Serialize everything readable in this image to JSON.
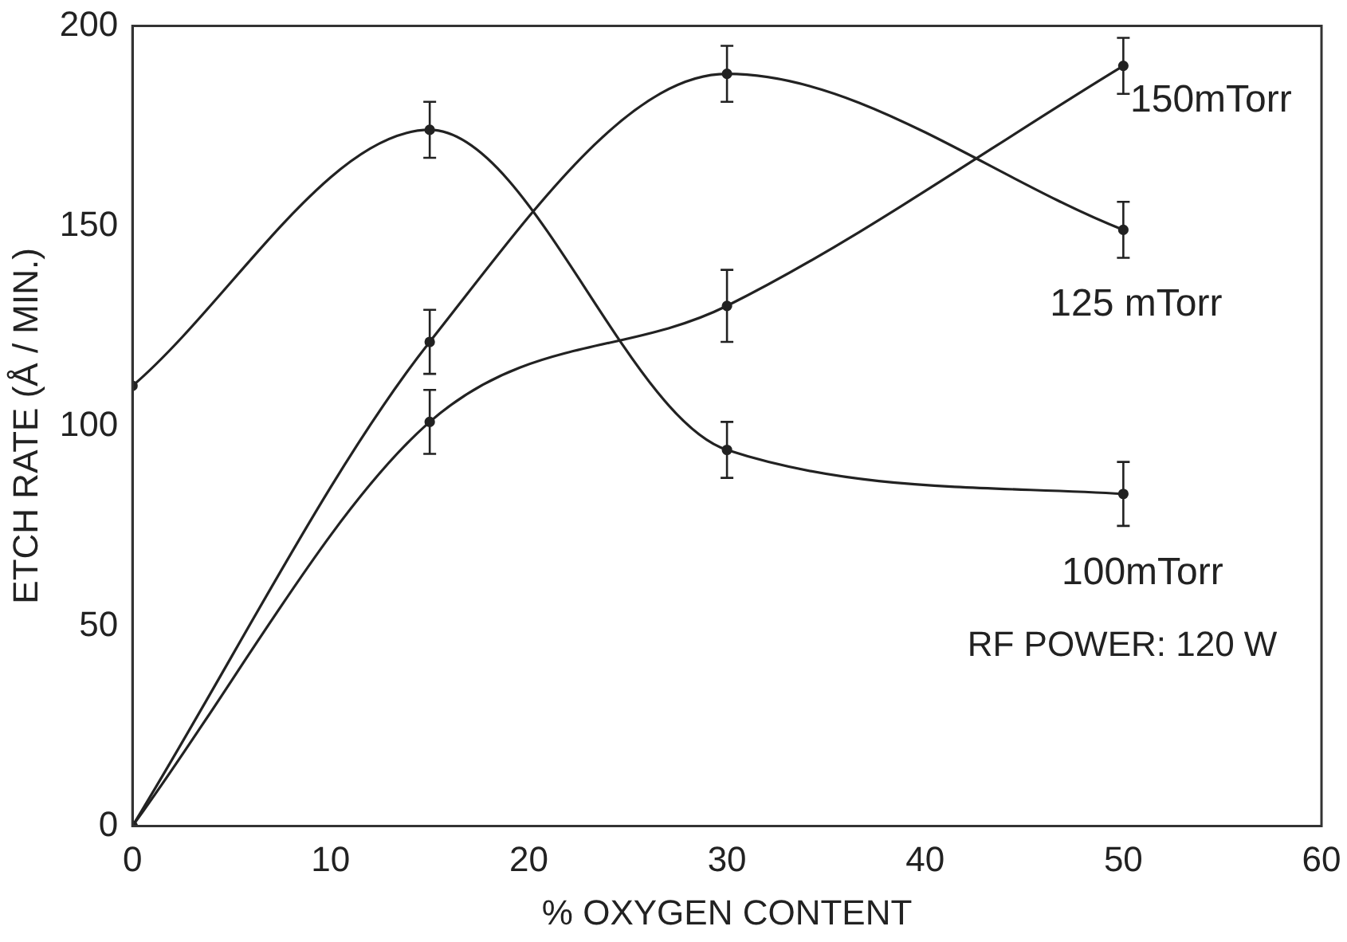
{
  "chart_data": {
    "type": "line",
    "xlabel": "% OXYGEN CONTENT",
    "ylabel": "ETCH RATE (Å / MIN.)",
    "xlim": [
      0,
      60
    ],
    "xticks": [
      0,
      10,
      20,
      30,
      40,
      50,
      60
    ],
    "ylim": [
      0,
      200
    ],
    "yticks": [
      0,
      50,
      100,
      150,
      200
    ],
    "grid": false,
    "legend": false,
    "marker": "circle",
    "line_style": "solid",
    "annotations": [
      "RF POWER: 120 W"
    ],
    "series": [
      {
        "name": "100mTorr",
        "color": "#222222",
        "x": [
          0,
          15,
          30,
          50
        ],
        "values": [
          110,
          174,
          94,
          83
        ],
        "errors": [
          null,
          7,
          7,
          8
        ]
      },
      {
        "name": "125 mTorr",
        "color": "#222222",
        "x": [
          0,
          15,
          30,
          50
        ],
        "values": [
          0,
          121,
          188,
          149
        ],
        "errors": [
          null,
          8,
          7,
          7
        ]
      },
      {
        "name": "150mTorr",
        "color": "#222222",
        "x": [
          0,
          15,
          30,
          50
        ],
        "values": [
          0,
          101,
          130,
          190
        ],
        "errors": [
          null,
          8,
          9,
          7
        ]
      }
    ]
  }
}
